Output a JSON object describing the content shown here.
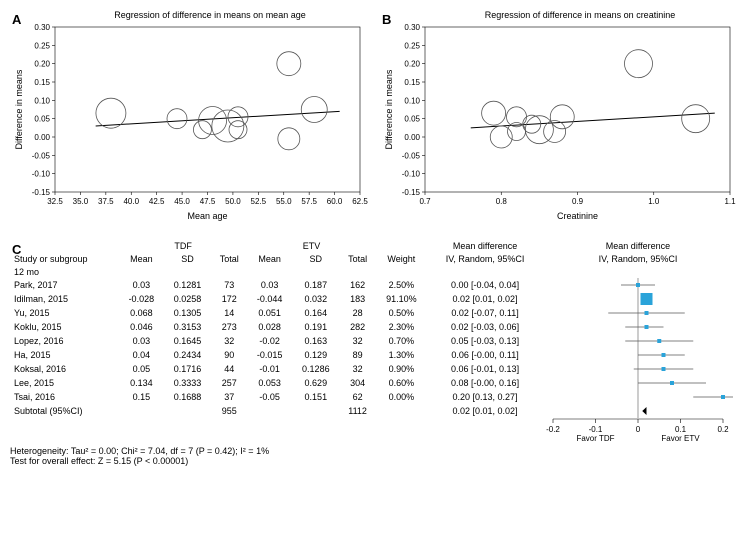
{
  "panels": {
    "A": {
      "label": "A",
      "title": "Regression of difference in means on mean age",
      "x_label": "Mean age",
      "y_label": "Difference in means",
      "xlim": [
        32.5,
        62.5
      ],
      "ylim": [
        -0.15,
        0.3
      ],
      "xticks": [
        32.5,
        35.0,
        37.5,
        40.0,
        42.5,
        45.0,
        47.5,
        50.0,
        52.5,
        55.0,
        57.5,
        60.0,
        62.5
      ],
      "yticks": [
        -0.15,
        -0.1,
        -0.05,
        0.0,
        0.05,
        0.1,
        0.15,
        0.2,
        0.25,
        0.3
      ],
      "background": "#ffffff",
      "line_color": "#000000",
      "bubble_stroke": "#555555",
      "bubble_fill": "none",
      "regression": [
        [
          36.5,
          0.03
        ],
        [
          60.5,
          0.07
        ]
      ],
      "points": [
        {
          "x": 38.0,
          "y": 0.065,
          "r": 15
        },
        {
          "x": 44.5,
          "y": 0.05,
          "r": 10
        },
        {
          "x": 47.0,
          "y": 0.02,
          "r": 9
        },
        {
          "x": 48.0,
          "y": 0.045,
          "r": 14
        },
        {
          "x": 49.5,
          "y": 0.03,
          "r": 16
        },
        {
          "x": 50.5,
          "y": 0.055,
          "r": 10
        },
        {
          "x": 50.5,
          "y": 0.02,
          "r": 9
        },
        {
          "x": 55.5,
          "y": -0.005,
          "r": 11
        },
        {
          "x": 55.5,
          "y": 0.2,
          "r": 12
        },
        {
          "x": 58.0,
          "y": 0.075,
          "r": 13
        }
      ]
    },
    "B": {
      "label": "B",
      "title": "Regression of difference in means on creatinine",
      "x_label": "Creatinine",
      "y_label": "Difference in means",
      "xlim": [
        0.7,
        1.1
      ],
      "ylim": [
        -0.15,
        0.3
      ],
      "xticks": [
        0.7,
        0.8,
        0.9,
        1.0,
        1.1
      ],
      "yticks": [
        -0.15,
        -0.1,
        -0.05,
        0.0,
        0.05,
        0.1,
        0.15,
        0.2,
        0.25,
        0.3
      ],
      "background": "#ffffff",
      "line_color": "#000000",
      "bubble_stroke": "#555555",
      "bubble_fill": "none",
      "regression": [
        [
          0.76,
          0.025
        ],
        [
          1.08,
          0.065
        ]
      ],
      "points": [
        {
          "x": 0.79,
          "y": 0.065,
          "r": 12
        },
        {
          "x": 0.8,
          "y": 0.0,
          "r": 11
        },
        {
          "x": 0.82,
          "y": 0.015,
          "r": 9
        },
        {
          "x": 0.82,
          "y": 0.055,
          "r": 10
        },
        {
          "x": 0.84,
          "y": 0.035,
          "r": 9
        },
        {
          "x": 0.85,
          "y": 0.02,
          "r": 14
        },
        {
          "x": 0.87,
          "y": 0.015,
          "r": 11
        },
        {
          "x": 0.88,
          "y": 0.055,
          "r": 12
        },
        {
          "x": 0.98,
          "y": 0.2,
          "r": 14
        },
        {
          "x": 1.055,
          "y": 0.05,
          "r": 14
        }
      ]
    }
  },
  "panelC": {
    "label": "C",
    "group_labels": {
      "tdf": "TDF",
      "etv": "ETV"
    },
    "col_headers": {
      "study": "Study or subgroup",
      "mean": "Mean",
      "sd": "SD",
      "total": "Total",
      "weight": "Weight",
      "md": "Mean difference",
      "md_sub": "IV, Random, 95%CI"
    },
    "subgroup": "12 mo",
    "rows": [
      {
        "study": "Park, 2017",
        "tdf_mean": "0.03",
        "tdf_sd": "0.1281",
        "tdf_total": "73",
        "etv_mean": "0.03",
        "etv_sd": "0.187",
        "etv_total": "162",
        "weight": "2.50%",
        "md": "0.00 [-0.04, 0.04]",
        "est": 0.0,
        "lo": -0.04,
        "hi": 0.04
      },
      {
        "study": "Idilman, 2015",
        "tdf_mean": "-0.028",
        "tdf_sd": "0.0258",
        "tdf_total": "172",
        "etv_mean": "-0.044",
        "etv_sd": "0.032",
        "etv_total": "183",
        "weight": "91.10%",
        "md": "0.02 [0.01, 0.02]",
        "est": 0.02,
        "lo": 0.01,
        "hi": 0.02,
        "big": true
      },
      {
        "study": "Yu, 2015",
        "tdf_mean": "0.068",
        "tdf_sd": "0.1305",
        "tdf_total": "14",
        "etv_mean": "0.051",
        "etv_sd": "0.164",
        "etv_total": "28",
        "weight": "0.50%",
        "md": "0.02 [-0.07, 0.11]",
        "est": 0.02,
        "lo": -0.07,
        "hi": 0.11
      },
      {
        "study": "Koklu, 2015",
        "tdf_mean": "0.046",
        "tdf_sd": "0.3153",
        "tdf_total": "273",
        "etv_mean": "0.028",
        "etv_sd": "0.191",
        "etv_total": "282",
        "weight": "2.30%",
        "md": "0.02 [-0.03, 0.06]",
        "est": 0.02,
        "lo": -0.03,
        "hi": 0.06
      },
      {
        "study": "Lopez, 2016",
        "tdf_mean": "0.03",
        "tdf_sd": "0.1645",
        "tdf_total": "32",
        "etv_mean": "-0.02",
        "etv_sd": "0.163",
        "etv_total": "32",
        "weight": "0.70%",
        "md": "0.05 [-0.03, 0.13]",
        "est": 0.05,
        "lo": -0.03,
        "hi": 0.13
      },
      {
        "study": "Ha, 2015",
        "tdf_mean": "0.04",
        "tdf_sd": "0.2434",
        "tdf_total": "90",
        "etv_mean": "-0.015",
        "etv_sd": "0.129",
        "etv_total": "89",
        "weight": "1.30%",
        "md": "0.06 [-0.00, 0.11]",
        "est": 0.06,
        "lo": 0.0,
        "hi": 0.11
      },
      {
        "study": "Koksal, 2016",
        "tdf_mean": "0.05",
        "tdf_sd": "0.1716",
        "tdf_total": "44",
        "etv_mean": "-0.01",
        "etv_sd": "0.1286",
        "etv_total": "32",
        "weight": "0.90%",
        "md": "0.06 [-0.01, 0.13]",
        "est": 0.06,
        "lo": -0.01,
        "hi": 0.13
      },
      {
        "study": "Lee, 2015",
        "tdf_mean": "0.134",
        "tdf_sd": "0.3333",
        "tdf_total": "257",
        "etv_mean": "0.053",
        "etv_sd": "0.629",
        "etv_total": "304",
        "weight": "0.60%",
        "md": "0.08 [-0.00, 0.16]",
        "est": 0.08,
        "lo": 0.0,
        "hi": 0.16
      },
      {
        "study": "Tsai, 2016",
        "tdf_mean": "0.15",
        "tdf_sd": "0.1688",
        "tdf_total": "37",
        "etv_mean": "-0.05",
        "etv_sd": "0.151",
        "etv_total": "62",
        "weight": "0.00%",
        "md": "0.20 [0.13, 0.27]",
        "est": 0.2,
        "lo": 0.13,
        "hi": 0.27
      }
    ],
    "subtotal": {
      "label": "Subtotal (95%CI)",
      "tdf_total": "955",
      "etv_total": "1112",
      "md": "0.02 [0.01, 0.02]",
      "est": 0.02,
      "lo": 0.01,
      "hi": 0.02
    },
    "heterogeneity": "Heterogeneity: Tau² = 0.00; Chi² = 7.04, df = 7 (P = 0.42); I² = 1%",
    "overall_effect": "Test for overall effect: Z = 5.15 (P < 0.00001)",
    "plot": {
      "xlim": [
        -0.2,
        0.2
      ],
      "ticks": [
        -0.2,
        -0.1,
        0,
        0.1,
        0.2
      ],
      "favor_left": "Favor TDF",
      "favor_right": "Favor ETV",
      "square_color": "#2aa3d9",
      "big_square_color": "#2aa3d9",
      "diamond_color": "#000000",
      "line_color": "#585858"
    }
  },
  "chart_size": {
    "A_w": 340,
    "A_h": 200,
    "B_w": 340,
    "B_h": 200
  }
}
